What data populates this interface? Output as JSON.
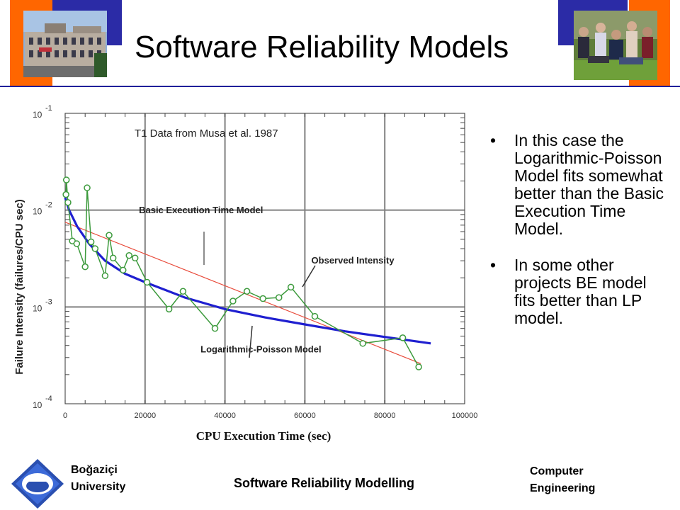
{
  "slide": {
    "title": "Software Reliability Models",
    "bullets": [
      "In this case the Logarithmic-Poisson Model fits somewhat better than the Basic Execution Time Model.",
      "In some other projects BE model fits better than LP model."
    ],
    "colors": {
      "orange": "#ff6600",
      "navy": "#2b2ba6",
      "rule": "#1f1f9a"
    }
  },
  "footer": {
    "left_line1": "Boğaziçi",
    "left_line2": "University",
    "center": "Software Reliability Modelling",
    "right_line1": "Computer",
    "right_line2": "Engineering",
    "logo_icon": "university-logo-icon"
  },
  "chart_data": {
    "type": "scatter",
    "title": "T1 Data from Musa et al. 1987",
    "xlabel": "CPU Execution Time (sec)",
    "ylabel": "Failure Intensity (failures/CPU sec)",
    "xlim": [
      0,
      100000
    ],
    "ylim": [
      0.0001,
      0.1
    ],
    "y_scale": "log",
    "grid": true,
    "x_ticks": [
      "0",
      "20000",
      "40000",
      "60000",
      "80000",
      "100000"
    ],
    "y_ticks": [
      {
        "value": 0.1,
        "base": "10",
        "exp": "-1"
      },
      {
        "value": 0.01,
        "base": "10",
        "exp": "-2"
      },
      {
        "value": 0.001,
        "base": "10",
        "exp": "-3"
      },
      {
        "value": 0.0001,
        "base": "10",
        "exp": "-4"
      }
    ],
    "annotations": [
      {
        "text": "Basic Execution Time Model",
        "x": 34000,
        "y": 0.0093
      },
      {
        "text": "Observed Intensity",
        "x": 72000,
        "y": 0.0028
      },
      {
        "text": "Logarithmic-Poisson Model",
        "x": 49000,
        "y": 0.00034
      }
    ],
    "series": [
      {
        "name": "Observed Intensity",
        "color": "#3c9a3c",
        "x": [
          200,
          300,
          700,
          1800,
          2900,
          5000,
          5500,
          6500,
          7500,
          10000,
          11000,
          12000,
          14500,
          16000,
          17500,
          20500,
          26000,
          29500,
          37500,
          42000,
          45500,
          49500,
          53500,
          56500,
          62500,
          74500,
          84500,
          88500
        ],
        "y": [
          0.0145,
          0.0205,
          0.012,
          0.0048,
          0.0045,
          0.0026,
          0.017,
          0.0047,
          0.004,
          0.0021,
          0.0055,
          0.0032,
          0.0024,
          0.0034,
          0.0032,
          0.0018,
          0.00095,
          0.00145,
          0.0006,
          0.00115,
          0.00145,
          0.00122,
          0.00125,
          0.0016,
          0.0008,
          0.00042,
          0.00048,
          0.00024
        ]
      },
      {
        "name": "Logarithmic-Poisson Model",
        "color": "#1f1fd0",
        "x": [
          0,
          1000,
          3000,
          6000,
          10000,
          15000,
          20000,
          30000,
          40000,
          50000,
          60000,
          70000,
          80000,
          91500
        ],
        "y": [
          0.0135,
          0.01,
          0.0068,
          0.0045,
          0.003,
          0.0022,
          0.0018,
          0.00125,
          0.00095,
          0.00078,
          0.00066,
          0.00056,
          0.00049,
          0.00042
        ]
      },
      {
        "name": "Basic Execution Time Model",
        "color": "#e84a3a",
        "x": [
          0,
          89000
        ],
        "y": [
          0.0075,
          0.00026
        ]
      }
    ]
  }
}
